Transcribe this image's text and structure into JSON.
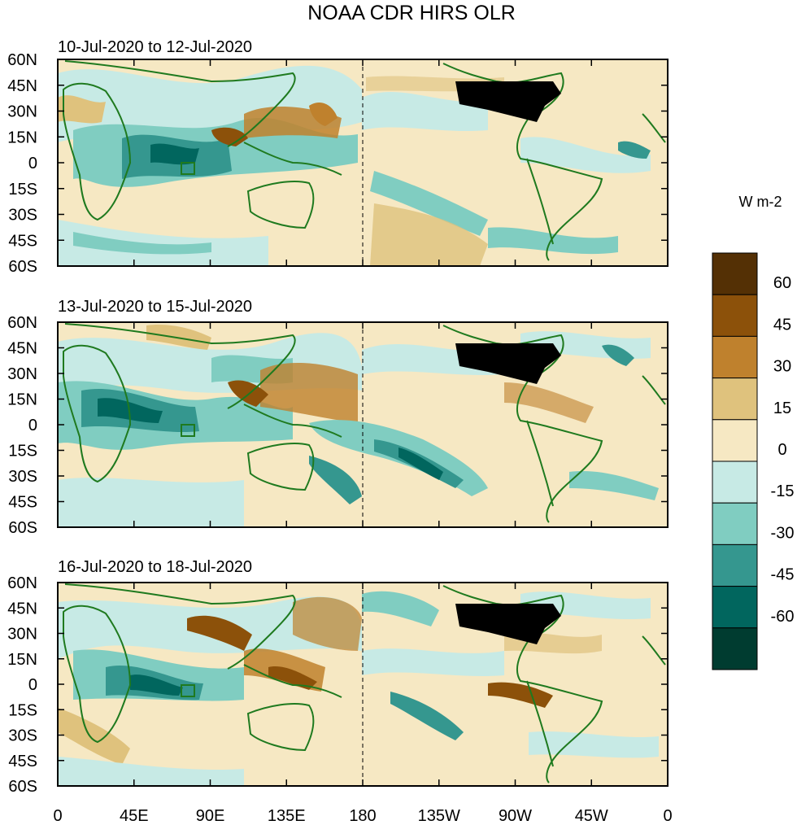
{
  "title": "NOAA CDR HIRS OLR",
  "panels": [
    {
      "date_range": "10-Jul-2020 to 12-Jul-2020"
    },
    {
      "date_range": "13-Jul-2020 to 15-Jul-2020"
    },
    {
      "date_range": "16-Jul-2020 to 18-Jul-2020"
    }
  ],
  "lat_ticks": [
    "60N",
    "45N",
    "30N",
    "15N",
    "0",
    "15S",
    "30S",
    "45S",
    "60S"
  ],
  "lon_ticks": [
    "0",
    "45E",
    "90E",
    "135E",
    "180",
    "135W",
    "90W",
    "45W",
    "0"
  ],
  "colorbar": {
    "units": "W m-2",
    "tick_labels": [
      "60",
      "45",
      "30",
      "15",
      "0",
      "-15",
      "-30",
      "-45",
      "-60"
    ],
    "levels_top_to_bottom": [
      "#543005",
      "#8c510a",
      "#bf812d",
      "#dfc27d",
      "#f6e8c3",
      "#c7eae5",
      "#80cdc1",
      "#35978f",
      "#01665e",
      "#003c30"
    ]
  },
  "colors": {
    "coastline": "#1f7a1f",
    "land_mask_us": "#000000",
    "neutral_field": "#f6e8c3"
  }
}
